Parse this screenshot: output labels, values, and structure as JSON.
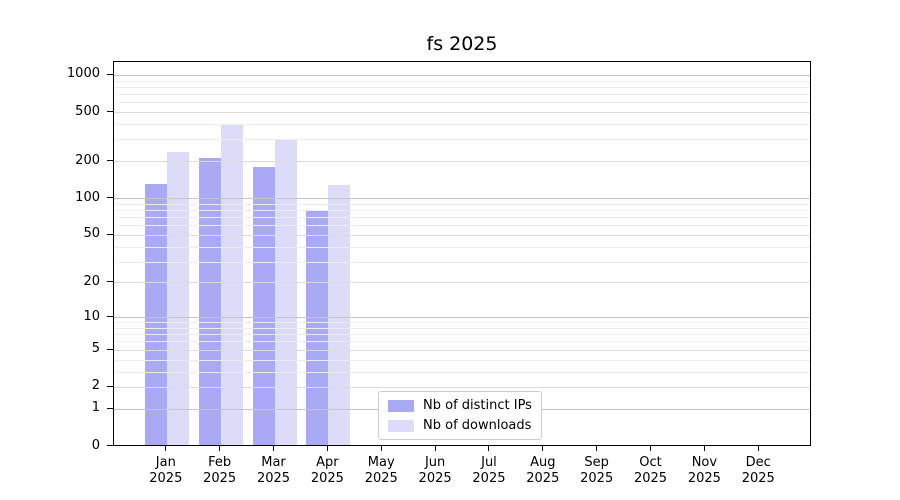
{
  "title": "fs 2025",
  "chart_data": {
    "type": "bar",
    "title": "fs 2025",
    "y_scale": "symlog (position proportional to ln(1+v))",
    "y_max": 1284,
    "y_ticks": [
      0,
      1,
      2,
      5,
      10,
      20,
      50,
      100,
      200,
      500,
      1000
    ],
    "grid": "major and minor horizontal gridlines, drawn over bars",
    "categories": [
      "Jan",
      "Feb",
      "Mar",
      "Apr",
      "May",
      "Jun",
      "Jul",
      "Aug",
      "Sep",
      "Oct",
      "Nov",
      "Dec"
    ],
    "year": "2025",
    "series": [
      {
        "name": "Nb of distinct IPs",
        "color": "#a9a9f5",
        "values": [
          128,
          210,
          176,
          79,
          null,
          null,
          null,
          null,
          null,
          null,
          null,
          null
        ]
      },
      {
        "name": "Nb of downloads",
        "color": "#dcdcf8",
        "values": [
          235,
          390,
          292,
          126,
          null,
          null,
          null,
          null,
          null,
          null,
          null,
          null
        ]
      }
    ],
    "legend_position": "lower center"
  },
  "colors": {
    "background": "#ffffff",
    "axis": "#000000",
    "grid_major": "#c4c4c4",
    "grid_mid": "#dbdbdb",
    "grid_minor": "#ececec",
    "legend_border": "#cccccc",
    "text": "#000000"
  }
}
